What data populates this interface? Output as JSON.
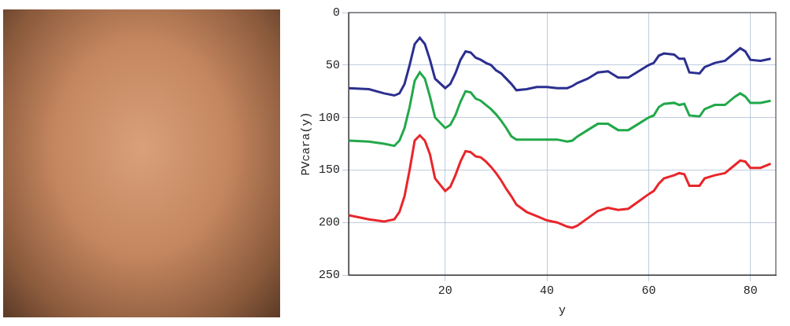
{
  "chart_data": {
    "type": "line",
    "x_label": "y",
    "y_label": "PVcara(y)",
    "x": [
      1,
      5,
      8,
      10,
      11,
      12,
      13,
      14,
      15,
      16,
      17,
      18,
      20,
      21,
      22,
      23,
      24,
      25,
      26,
      27,
      28,
      29,
      30,
      31,
      32,
      33,
      34,
      36,
      38,
      40,
      42,
      44,
      45,
      46,
      48,
      50,
      52,
      54,
      56,
      58,
      60,
      61,
      62,
      63,
      65,
      66,
      67,
      68,
      70,
      71,
      73,
      75,
      77,
      78,
      79,
      80,
      82,
      84
    ],
    "series": [
      {
        "color": "#2b2f8f",
        "values": [
          72,
          73,
          77,
          79,
          77,
          68,
          50,
          30,
          24,
          30,
          45,
          63,
          72,
          68,
          58,
          45,
          37,
          38,
          43,
          45,
          48,
          50,
          55,
          58,
          63,
          68,
          74,
          73,
          71,
          71,
          72,
          72,
          70,
          67,
          63,
          57,
          56,
          62,
          62,
          56,
          50,
          48,
          41,
          39,
          40,
          44,
          44,
          57,
          58,
          52,
          48,
          46,
          38,
          34,
          37,
          45,
          46,
          44
        ]
      },
      {
        "color": "#22a84a",
        "values": [
          122,
          123,
          125,
          127,
          122,
          110,
          90,
          65,
          57,
          63,
          80,
          100,
          110,
          107,
          98,
          85,
          75,
          76,
          82,
          84,
          88,
          92,
          97,
          103,
          110,
          118,
          121,
          121,
          121,
          121,
          121,
          123,
          122,
          118,
          112,
          106,
          106,
          112,
          112,
          106,
          100,
          98,
          90,
          87,
          86,
          88,
          87,
          98,
          99,
          92,
          88,
          88,
          80,
          77,
          80,
          86,
          86,
          84
        ]
      },
      {
        "color": "#e8262a",
        "values": [
          193,
          197,
          199,
          197,
          190,
          175,
          150,
          122,
          117,
          122,
          135,
          158,
          170,
          166,
          155,
          142,
          132,
          133,
          137,
          138,
          142,
          147,
          153,
          160,
          168,
          175,
          183,
          190,
          194,
          198,
          200,
          204,
          205,
          203,
          196,
          189,
          186,
          188,
          187,
          180,
          173,
          170,
          163,
          158,
          155,
          153,
          154,
          165,
          165,
          158,
          155,
          153,
          145,
          141,
          142,
          148,
          148,
          144
        ]
      }
    ],
    "xlim": [
      1,
      85
    ],
    "xticks": [
      20,
      40,
      60,
      80
    ],
    "ylim": [
      0,
      250
    ],
    "yticks": [
      0,
      50,
      100,
      150,
      200,
      250
    ],
    "grid": true
  }
}
